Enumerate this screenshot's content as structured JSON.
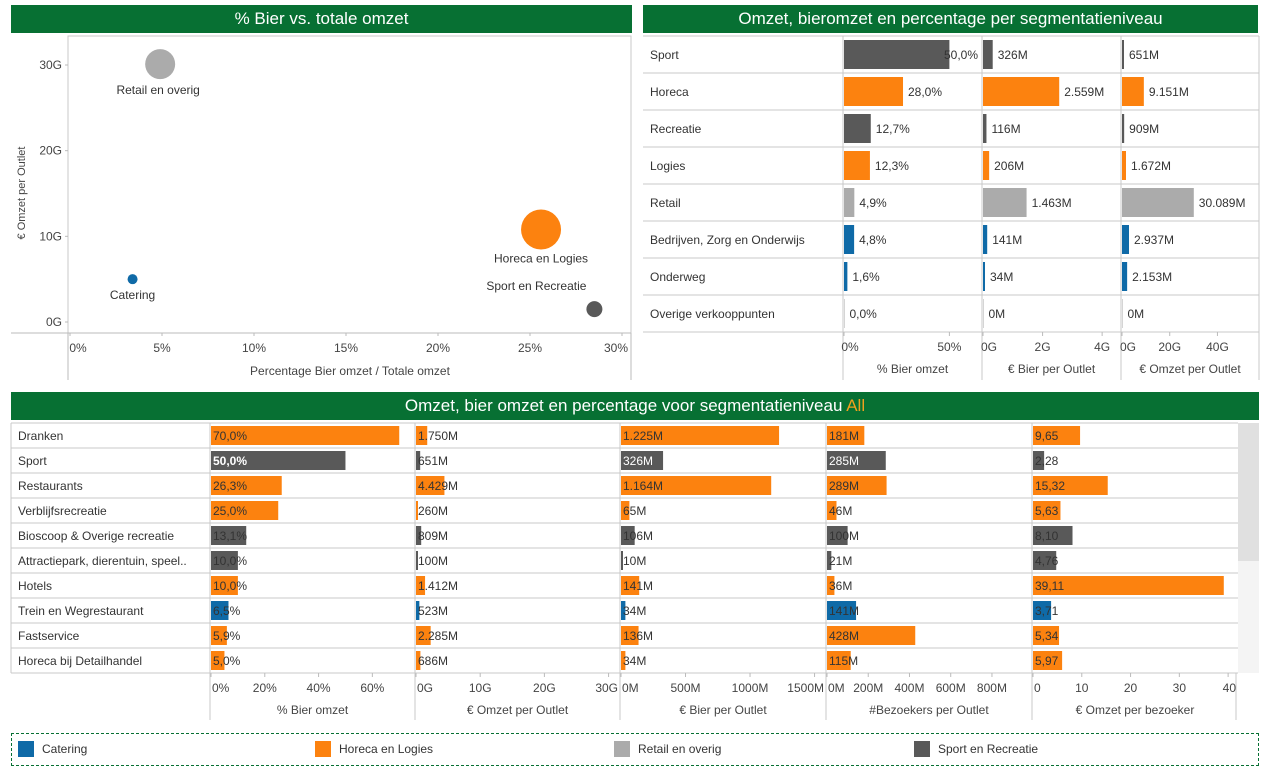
{
  "colors": {
    "Catering": "#0f6aa7",
    "Horeca en Logies": "#fc820f",
    "Retail en overig": "#ababab",
    "Sport en Recreatie": "#595959",
    "header_bg": "#077033",
    "highlight": "#f0a01e"
  },
  "panels": {
    "scatter_title": "% Bier vs. totale omzet",
    "segment_title": "Omzet, bieromzet en percentage per segmentatieniveau",
    "detail_title_prefix": "Omzet, bier omzet en percentage voor segmentatieniveau ",
    "detail_title_highlight": "All"
  },
  "legend": [
    {
      "label": "Catering",
      "color": "#0f6aa7"
    },
    {
      "label": "Horeca en Logies",
      "color": "#fc820f"
    },
    {
      "label": "Retail en overig",
      "color": "#ababab"
    },
    {
      "label": "Sport en Recreatie",
      "color": "#595959"
    }
  ],
  "chart_data": [
    {
      "type": "scatter",
      "title": "% Bier vs. totale omzet",
      "xlabel": "Percentage Bier omzet / Totale omzet",
      "ylabel": "€ Omzet per Outlet",
      "xlim": [
        0,
        30
      ],
      "ylim": [
        0,
        30
      ],
      "xticks": [
        "0%",
        "5%",
        "10%",
        "15%",
        "20%",
        "25%",
        "30%"
      ],
      "yticks": [
        "0G",
        "10G",
        "20G",
        "30G"
      ],
      "grid": false,
      "points": [
        {
          "label": "Retail en overig",
          "group": "Retail en overig",
          "x": 4.9,
          "y": 30.1,
          "size": 3
        },
        {
          "label": "Horeca en Logies",
          "group": "Horeca en Logies",
          "x": 25.6,
          "y": 10.8,
          "size": 4
        },
        {
          "label": "Catering",
          "group": "Catering",
          "x": 3.4,
          "y": 5.0,
          "size": 1
        },
        {
          "label": "Sport en Recreatie",
          "group": "Sport en Recreatie",
          "x": 28.5,
          "y": 1.5,
          "size": 2
        }
      ]
    },
    {
      "type": "bar",
      "title": "Omzet, bieromzet en percentage per segmentatieniveau",
      "categories": [
        "Sport",
        "Horeca",
        "Recreatie",
        "Logies",
        "Retail",
        "Bedrijven, Zorg en Onderwijs",
        "Onderweg",
        "Overige verkooppunten"
      ],
      "groups": [
        "Sport en Recreatie",
        "Horeca en Logies",
        "Sport en Recreatie",
        "Horeca en Logies",
        "Retail en overig",
        "Catering",
        "Catering",
        "Retail en overig"
      ],
      "series": [
        {
          "name": "% Bier omzet",
          "values": [
            50.0,
            28.0,
            12.7,
            12.3,
            4.9,
            4.8,
            1.6,
            0.0
          ],
          "labels": [
            "50,0%",
            "28,0%",
            "12,7%",
            "12,3%",
            "4,9%",
            "4,8%",
            "1,6%",
            "0,0%"
          ],
          "xlim": [
            0,
            65
          ],
          "ticks": [
            "0%",
            "50%"
          ],
          "tickvals": [
            0,
            50
          ]
        },
        {
          "name": "€ Bier per Outlet",
          "values": [
            326,
            2559,
            116,
            206,
            1463,
            141,
            34,
            0
          ],
          "labels": [
            "326M",
            "2.559M",
            "116M",
            "206M",
            "1.463M",
            "141M",
            "34M",
            "0M"
          ],
          "xlim": [
            0,
            4600
          ],
          "ticks": [
            "0G",
            "2G",
            "4G"
          ],
          "tickvals": [
            0,
            2000,
            4000
          ]
        },
        {
          "name": "€ Omzet per Outlet",
          "values": [
            651,
            9151,
            909,
            1672,
            30089,
            2937,
            2153,
            0
          ],
          "labels": [
            "651M",
            "9.151M",
            "909M",
            "1.672M",
            "30.089M",
            "2.937M",
            "2.153M",
            "0M"
          ],
          "xlim": [
            0,
            57000
          ],
          "ticks": [
            "0G",
            "20G",
            "40G"
          ],
          "tickvals": [
            0,
            20000,
            40000
          ]
        }
      ]
    },
    {
      "type": "bar",
      "title": "Omzet, bier omzet en percentage voor segmentatieniveau All",
      "categories": [
        "Dranken",
        "Sport",
        "Restaurants",
        "Verblijfsrecreatie",
        "Bioscoop & Overige recreatie",
        "Attractiepark, dierentuin, speel..",
        "Hotels",
        "Trein en Wegrestaurant",
        "Fastservice",
        "Horeca bij Detailhandel"
      ],
      "groups": [
        "Horeca en Logies",
        "Sport en Recreatie",
        "Horeca en Logies",
        "Horeca en Logies",
        "Sport en Recreatie",
        "Sport en Recreatie",
        "Horeca en Logies",
        "Catering",
        "Horeca en Logies",
        "Horeca en Logies"
      ],
      "series": [
        {
          "name": "% Bier omzet",
          "values": [
            70.0,
            50.0,
            26.3,
            25.0,
            13.1,
            10.0,
            10.0,
            6.5,
            5.9,
            5.0
          ],
          "labels": [
            "70,0%",
            "50,0%",
            "26,3%",
            "25,0%",
            "13,1%",
            "10,0%",
            "10,0%",
            "6,5%",
            "5,9%",
            "5,0%"
          ],
          "xlim": [
            0,
            74
          ],
          "ticks": [
            "0%",
            "20%",
            "40%",
            "60%"
          ],
          "tickvals": [
            0,
            20,
            40,
            60
          ]
        },
        {
          "name": "€ Omzet per Outlet",
          "values": [
            1750,
            651,
            4429,
            260,
            809,
            100,
            1412,
            523,
            2285,
            686
          ],
          "labels": [
            "1.750M",
            "651M",
            "4.429M",
            "260M",
            "809M",
            "100M",
            "1.412M",
            "523M",
            "2.285M",
            "686M"
          ],
          "xlim": [
            0,
            31000
          ],
          "ticks": [
            "0G",
            "10G",
            "20G",
            "30G"
          ],
          "tickvals": [
            0,
            10000,
            20000,
            30000
          ]
        },
        {
          "name": "€ Bier per Outlet",
          "values": [
            1225,
            326,
            1164,
            65,
            106,
            10,
            141,
            34,
            136,
            34
          ],
          "labels": [
            "1.225M",
            "326M",
            "1.164M",
            "65M",
            "106M",
            "10M",
            "141M",
            "34M",
            "136M",
            "34M"
          ],
          "xlim": [
            0,
            1550
          ],
          "ticks": [
            "0M",
            "500M",
            "1000M",
            "1500M"
          ],
          "tickvals": [
            0,
            500,
            1000,
            1500
          ]
        },
        {
          "name": "#Bezoekers per Outlet",
          "values": [
            181,
            285,
            289,
            46,
            100,
            21,
            36,
            141,
            428,
            115
          ],
          "labels": [
            "181M",
            "285M",
            "289M",
            "46M",
            "100M",
            "21M",
            "36M",
            "141M",
            "428M",
            "115M"
          ],
          "xlim": [
            0,
            970
          ],
          "ticks": [
            "0M",
            "200M",
            "400M",
            "600M",
            "800M"
          ],
          "tickvals": [
            0,
            200,
            400,
            600,
            800
          ]
        },
        {
          "name": "€ Omzet per bezoeker",
          "values": [
            9.65,
            2.28,
            15.32,
            5.63,
            8.1,
            4.76,
            39.11,
            3.71,
            5.34,
            5.97
          ],
          "labels": [
            "9,65",
            "2,28",
            "15,32",
            "5,63",
            "8,10",
            "4,76",
            "39,11",
            "3,71",
            "5,34",
            "5,97"
          ],
          "xlim": [
            0,
            41
          ],
          "ticks": [
            "0",
            "10",
            "20",
            "30",
            "40"
          ],
          "tickvals": [
            0,
            10,
            20,
            30,
            40
          ]
        }
      ]
    }
  ]
}
